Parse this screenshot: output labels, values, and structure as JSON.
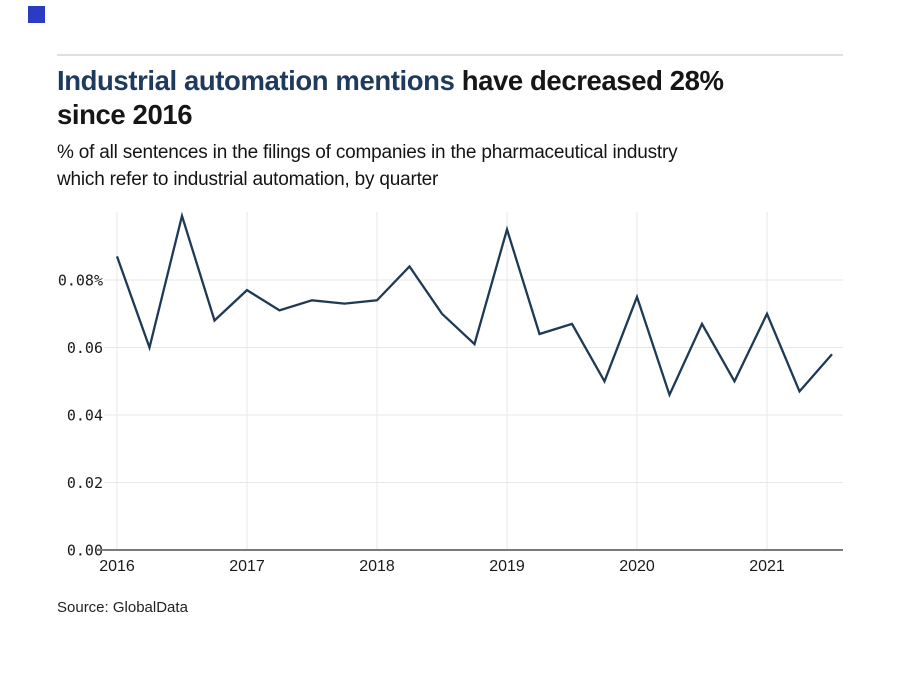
{
  "logo": {
    "color": "#2b3cc4"
  },
  "header": {
    "title_highlight": "Industrial automation mentions",
    "title_rest_line1": " have decreased 28%",
    "title_line2": "since 2016",
    "subtitle_line1": "% of all sentences in the filings of companies in the pharmaceutical industry",
    "subtitle_line2": "which refer to industrial automation, by quarter"
  },
  "source": {
    "label": "Source: GlobalData"
  },
  "chart_data": {
    "type": "line",
    "title": "Industrial automation mentions have decreased 28% since 2016",
    "subtitle": "% of all sentences in the filings of companies in the pharmaceutical industry which refer to industrial automation, by quarter",
    "categories": [
      "2016 Q1",
      "2016 Q2",
      "2016 Q3",
      "2016 Q4",
      "2017 Q1",
      "2017 Q2",
      "2017 Q3",
      "2017 Q4",
      "2018 Q1",
      "2018 Q2",
      "2018 Q3",
      "2018 Q4",
      "2019 Q1",
      "2019 Q2",
      "2019 Q3",
      "2019 Q4",
      "2020 Q1",
      "2020 Q2",
      "2020 Q3",
      "2020 Q4",
      "2021 Q1",
      "2021 Q2",
      "2021 Q3"
    ],
    "values": [
      0.087,
      0.06,
      0.099,
      0.068,
      0.077,
      0.071,
      0.074,
      0.073,
      0.074,
      0.084,
      0.07,
      0.061,
      0.095,
      0.064,
      0.067,
      0.05,
      0.075,
      0.046,
      0.067,
      0.05,
      0.07,
      0.047,
      0.058
    ],
    "unit": "%",
    "xlabel": "",
    "ylabel": "",
    "ylim": [
      0,
      0.1
    ],
    "x_tick_labels": [
      "2016",
      "2017",
      "2018",
      "2019",
      "2020",
      "2021"
    ],
    "y_tick_labels": [
      "0.08%",
      "0.06",
      "0.04",
      "0.02",
      "0.00"
    ],
    "y_tick_values": [
      0.08,
      0.06,
      0.04,
      0.02,
      0
    ],
    "grid": true,
    "legend_position": "none",
    "line_color": "#1f3a55",
    "grid_color": "#e7e7e7",
    "axis_color": "#7b7b7b",
    "tick_label_color": "#1a1a1a"
  }
}
